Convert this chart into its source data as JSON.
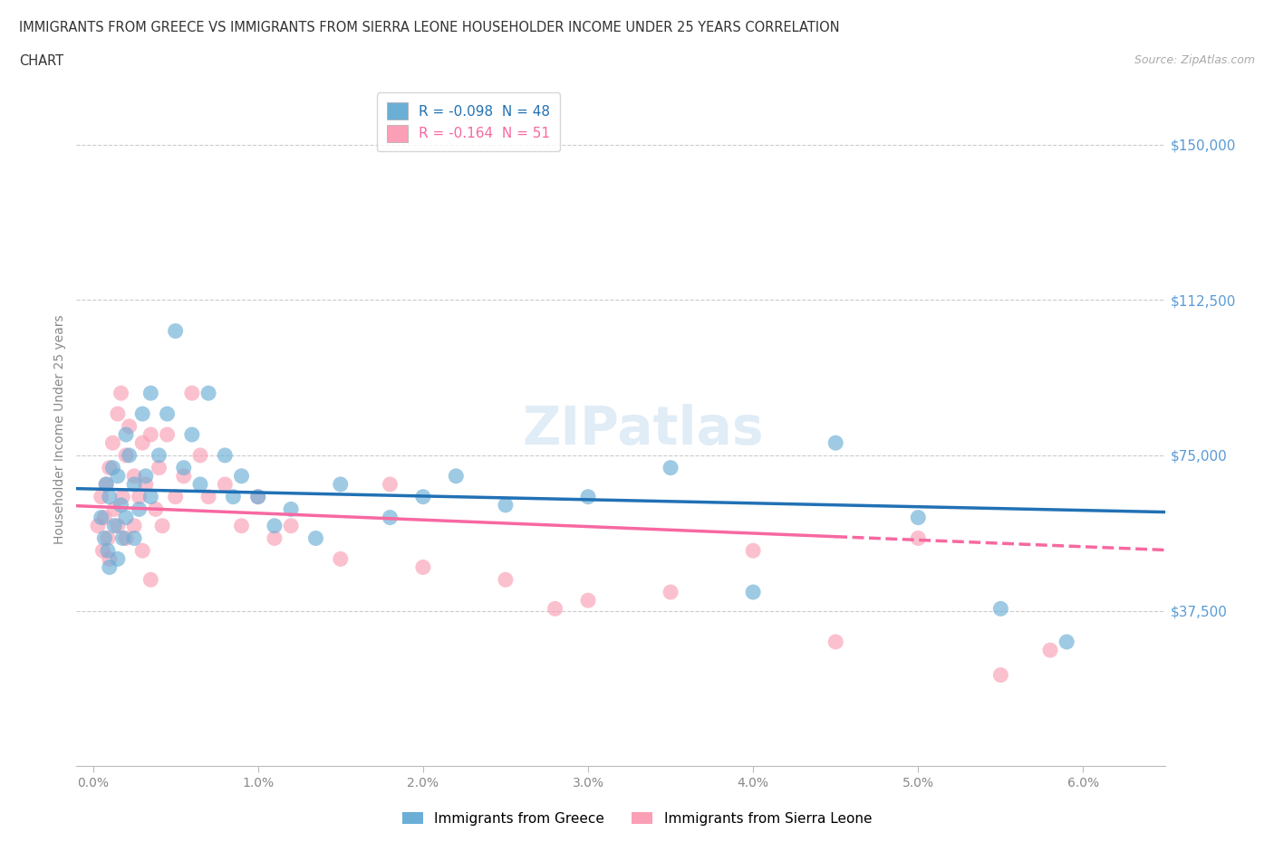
{
  "title_line1": "IMMIGRANTS FROM GREECE VS IMMIGRANTS FROM SIERRA LEONE HOUSEHOLDER INCOME UNDER 25 YEARS CORRELATION",
  "title_line2": "CHART",
  "source": "Source: ZipAtlas.com",
  "ylabel": "Householder Income Under 25 years",
  "xlabel_ticks": [
    "0.0%",
    "1.0%",
    "2.0%",
    "3.0%",
    "4.0%",
    "5.0%",
    "6.0%"
  ],
  "xlabel_vals": [
    0.0,
    1.0,
    2.0,
    3.0,
    4.0,
    5.0,
    6.0
  ],
  "ytick_labels": [
    "$37,500",
    "$75,000",
    "$112,500",
    "$150,000"
  ],
  "ytick_vals": [
    37500,
    75000,
    112500,
    150000
  ],
  "ymin": 0,
  "ymax": 162500,
  "xmin": -0.1,
  "xmax": 6.5,
  "color_greece": "#6baed6",
  "color_sierra": "#fa9fb5",
  "trendline_greece": "#2171b5",
  "trendline_sierra": "#f768a1",
  "R_greece": -0.098,
  "N_greece": 48,
  "R_sierra": -0.164,
  "N_sierra": 51,
  "legend_label_greece": "Immigrants from Greece",
  "legend_label_sierra": "Immigrants from Sierra Leone",
  "watermark": "ZIPatlas",
  "greece_x": [
    0.05,
    0.07,
    0.08,
    0.09,
    0.1,
    0.1,
    0.12,
    0.13,
    0.15,
    0.15,
    0.17,
    0.18,
    0.2,
    0.2,
    0.22,
    0.25,
    0.25,
    0.28,
    0.3,
    0.32,
    0.35,
    0.35,
    0.4,
    0.45,
    0.5,
    0.55,
    0.6,
    0.65,
    0.7,
    0.8,
    0.85,
    0.9,
    1.0,
    1.1,
    1.2,
    1.35,
    1.5,
    1.8,
    2.0,
    2.2,
    2.5,
    3.0,
    3.5,
    4.0,
    4.5,
    5.0,
    5.5,
    5.9
  ],
  "greece_y": [
    60000,
    55000,
    68000,
    52000,
    65000,
    48000,
    72000,
    58000,
    70000,
    50000,
    63000,
    55000,
    80000,
    60000,
    75000,
    68000,
    55000,
    62000,
    85000,
    70000,
    90000,
    65000,
    75000,
    85000,
    105000,
    72000,
    80000,
    68000,
    90000,
    75000,
    65000,
    70000,
    65000,
    58000,
    62000,
    55000,
    68000,
    60000,
    65000,
    70000,
    63000,
    65000,
    72000,
    42000,
    78000,
    60000,
    38000,
    30000
  ],
  "sierra_x": [
    0.03,
    0.05,
    0.06,
    0.07,
    0.08,
    0.09,
    0.1,
    0.1,
    0.12,
    0.13,
    0.15,
    0.15,
    0.17,
    0.18,
    0.2,
    0.2,
    0.22,
    0.25,
    0.25,
    0.28,
    0.3,
    0.3,
    0.32,
    0.35,
    0.38,
    0.4,
    0.42,
    0.45,
    0.5,
    0.55,
    0.6,
    0.65,
    0.7,
    0.8,
    0.9,
    1.0,
    1.1,
    1.2,
    1.5,
    1.8,
    2.0,
    2.5,
    3.0,
    3.5,
    4.0,
    4.5,
    5.0,
    5.5,
    5.8,
    0.35,
    2.8
  ],
  "sierra_y": [
    58000,
    65000,
    52000,
    60000,
    68000,
    55000,
    72000,
    50000,
    78000,
    62000,
    85000,
    58000,
    90000,
    65000,
    75000,
    55000,
    82000,
    70000,
    58000,
    65000,
    78000,
    52000,
    68000,
    80000,
    62000,
    72000,
    58000,
    80000,
    65000,
    70000,
    90000,
    75000,
    65000,
    68000,
    58000,
    65000,
    55000,
    58000,
    50000,
    68000,
    48000,
    45000,
    40000,
    42000,
    52000,
    30000,
    55000,
    22000,
    28000,
    45000,
    38000
  ]
}
